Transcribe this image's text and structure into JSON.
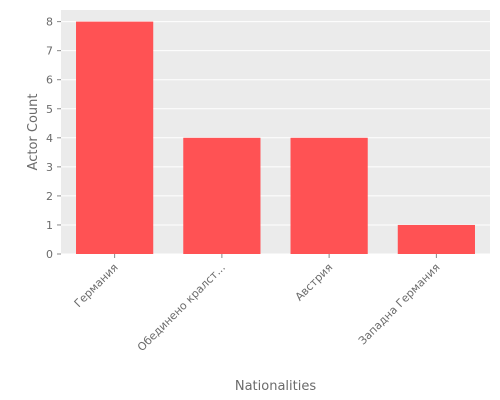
{
  "chart_data": {
    "type": "bar",
    "title": "",
    "xlabel": "Nationalities",
    "ylabel": "Actor Count",
    "categories": [
      "Германия",
      "Обединено кралст...",
      "Австрия",
      "Западна Германия"
    ],
    "values": [
      8,
      4,
      4,
      1
    ],
    "ylim": [
      0,
      8.4
    ],
    "yticks": [
      0,
      1,
      2,
      3,
      4,
      5,
      6,
      7,
      8
    ],
    "grid": true,
    "legend": "none",
    "colors": {
      "bar": "#ff5254",
      "plot_background": "#ebebeb",
      "grid": "#ffffff",
      "text": "#6b6b6b"
    }
  }
}
